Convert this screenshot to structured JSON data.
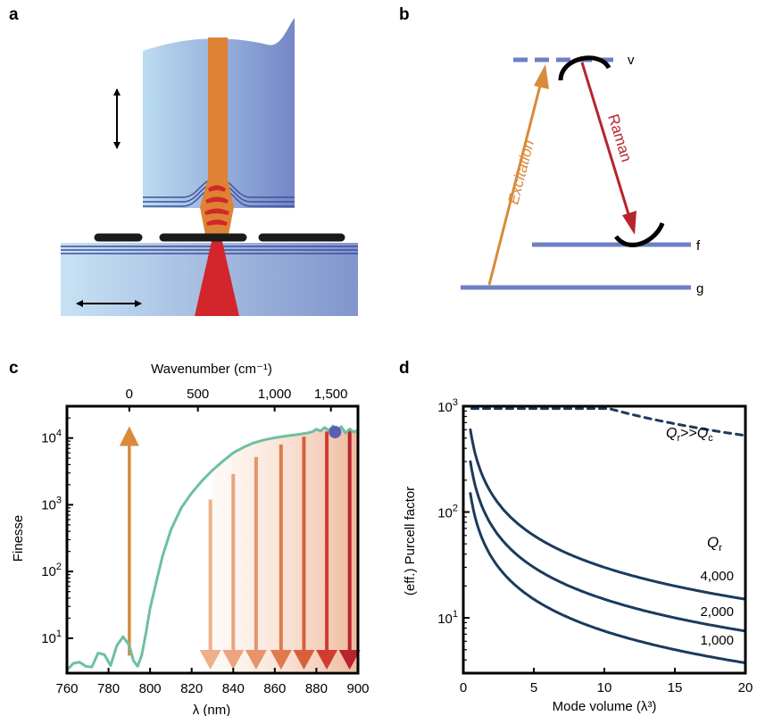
{
  "panels": {
    "a": {
      "label": "a"
    },
    "b": {
      "label": "b",
      "level_v": "v",
      "level_f": "f",
      "level_g": "g",
      "excitation": "Excitation",
      "raman": "Raman"
    },
    "c": {
      "label": "c"
    },
    "d": {
      "label": "d"
    }
  },
  "colors": {
    "excitation": "#d98a3a",
    "raman": "#b8242e",
    "finesse_curve": "#6fbfa2",
    "level": "#6f7fc4",
    "purcell_curve": "#1c3a5e",
    "marker": "#5a5fb0"
  },
  "chart_data": [
    {
      "panel": "c",
      "type": "line",
      "xlabel": "λ (nm)",
      "ylabel": "Finesse",
      "x2label": "Wavenumber (cm⁻¹)",
      "xlim": [
        760,
        900
      ],
      "ylim": [
        3,
        30000
      ],
      "yscale": "log",
      "xticks": [
        760,
        780,
        800,
        820,
        840,
        860,
        880,
        900
      ],
      "yticks": [
        {
          "value": 10,
          "base": "10",
          "exp": "1"
        },
        {
          "value": 100,
          "base": "10",
          "exp": "2"
        },
        {
          "value": 1000,
          "base": "10",
          "exp": "3"
        },
        {
          "value": 10000,
          "base": "10",
          "exp": "4"
        }
      ],
      "x2ticks": [
        {
          "label": "0",
          "lambda": 790
        },
        {
          "label": "500",
          "lambda": 823.0
        },
        {
          "label": "1,000",
          "lambda": 859.9
        },
        {
          "label": "1,500",
          "lambda": 887.0
        }
      ],
      "series": [
        {
          "x": [
            760,
            763,
            766,
            769,
            772,
            775,
            778,
            781,
            784,
            787,
            790,
            792,
            794,
            796,
            798,
            800,
            803,
            806,
            810,
            815,
            820,
            825,
            830,
            835,
            840,
            845,
            850,
            855,
            860,
            865,
            870,
            875,
            878,
            880,
            882,
            884,
            886,
            888,
            890,
            892,
            894,
            896,
            898,
            900
          ],
          "y": [
            3.3,
            4.2,
            4.4,
            3.8,
            3.7,
            6.0,
            5.7,
            3.9,
            7.8,
            10.5,
            7.8,
            4.6,
            3.8,
            5.6,
            12,
            28,
            70,
            170,
            420,
            900,
            1500,
            2300,
            3300,
            4500,
            6000,
            7300,
            8500,
            9400,
            10100,
            10700,
            11200,
            11800,
            12400,
            13600,
            12800,
            14400,
            13000,
            15200,
            12600,
            14800,
            11900,
            13700,
            12300,
            13100
          ]
        }
      ],
      "excitation": {
        "lambda": 790,
        "from": 5.5,
        "to": 15000
      },
      "raman_lines": [
        {
          "lambda": 829,
          "finesse": 1200
        },
        {
          "lambda": 840,
          "finesse": 2900
        },
        {
          "lambda": 851,
          "finesse": 5200
        },
        {
          "lambda": 863,
          "finesse": 8000
        },
        {
          "lambda": 874,
          "finesse": 10500
        },
        {
          "lambda": 885,
          "finesse": 12500
        },
        {
          "lambda": 896,
          "finesse": 13500
        }
      ],
      "marker": {
        "lambda": 889,
        "finesse": 12300
      }
    },
    {
      "panel": "d",
      "type": "line",
      "xlabel": "Mode volume (λ³)",
      "ylabel": "(eff.) Purcell factor",
      "xlim": [
        0,
        20
      ],
      "ylim": [
        3,
        1000
      ],
      "yscale": "log",
      "xticks": [
        0,
        5,
        10,
        15,
        20
      ],
      "yticks": [
        {
          "value": 10,
          "base": "10",
          "exp": "1"
        },
        {
          "value": 100,
          "base": "10",
          "exp": "2"
        },
        {
          "value": 1000,
          "base": "10",
          "exp": "3"
        }
      ],
      "legend_title": "Q",
      "legend_title_sub": "r",
      "series": [
        {
          "name": "Q>>Q",
          "style": "dashed",
          "k": 7600,
          "a": 0.89
        },
        {
          "name": "4,000",
          "style": "solid",
          "k": 300,
          "a": 1
        },
        {
          "name": "2,000",
          "style": "solid",
          "k": 150,
          "a": 1
        },
        {
          "name": "1,000",
          "style": "solid",
          "k": 75,
          "a": 1
        }
      ],
      "dashed_label": {
        "q1": "Q",
        "s1": "r",
        "op": ">>",
        "q2": "Q",
        "s2": "c"
      }
    }
  ]
}
